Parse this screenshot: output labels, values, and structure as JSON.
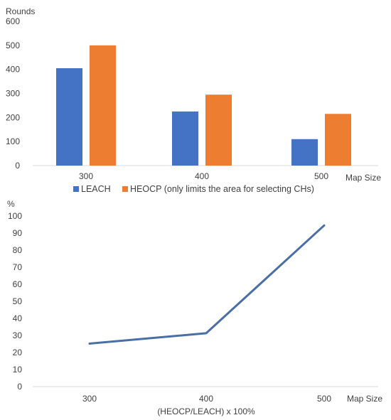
{
  "chart_data": [
    {
      "type": "bar",
      "ylabel": "Rounds",
      "xlabel": "Map Size",
      "categories": [
        "300",
        "400",
        "500"
      ],
      "series": [
        {
          "name": "LEACH",
          "values": [
            405,
            225,
            110
          ],
          "color": "#4472c4"
        },
        {
          "name": "HEOCP (only limits the area for selecting CHs)",
          "values": [
            500,
            295,
            215
          ],
          "color": "#ed7d31"
        }
      ],
      "ylim": [
        0,
        600
      ],
      "yticks": [
        0,
        100,
        200,
        300,
        400,
        500,
        600
      ],
      "grid": false,
      "legend_position": "bottom"
    },
    {
      "type": "line",
      "ylabel": "%",
      "xlabel": "Map Size",
      "caption": "(HEOCP/LEACH) x 100%",
      "categories": [
        "300",
        "400",
        "500"
      ],
      "series": [
        {
          "values": [
            25.2,
            31.3,
            94.5
          ],
          "color": "#4a6fa5"
        }
      ],
      "ylim": [
        0,
        100
      ],
      "yticks": [
        0,
        10,
        20,
        30,
        40,
        50,
        60,
        70,
        80,
        90,
        100
      ],
      "grid": false
    }
  ]
}
